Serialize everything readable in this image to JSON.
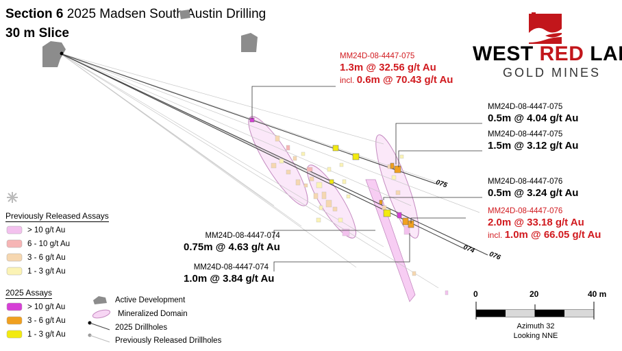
{
  "header": {
    "title_bold": "Section 6",
    "title_rest": "2025 Madsen South Austin Drilling",
    "subtitle": "30 m Slice"
  },
  "logo": {
    "word1": "WEST",
    "word2": "RED",
    "word3": "LAKE",
    "sub": "GOLD MINES",
    "accent_color": "#c2161b"
  },
  "callouts": {
    "c075_top": {
      "id": "MM24D-08-4447-075",
      "line1": "1.3m @ 32.56 g/t Au",
      "incl_prefix": "incl.",
      "incl_value": "0.6m @ 70.43 g/t Au"
    },
    "c075_a": {
      "id": "MM24D-08-4447-075",
      "value": "0.5m @ 4.04 g/t Au"
    },
    "c075_b": {
      "id": "MM24D-08-4447-075",
      "value": "1.5m @ 3.12 g/t Au"
    },
    "c076_a": {
      "id": "MM24D-08-4447-076",
      "value": "0.5m @ 3.24 g/t Au"
    },
    "c076_b": {
      "id": "MM24D-08-4447-076",
      "line1": "2.0m @ 33.18 g/t Au",
      "incl_prefix": "incl.",
      "incl_value": "1.0m @ 66.05 g/t Au"
    },
    "c074_a": {
      "id": "MM24D-08-4447-074",
      "value": "0.75m @ 4.63 g/t Au"
    },
    "c074_b": {
      "id": "MM24D-08-4447-074",
      "value": "1.0m @ 3.84 g/t Au"
    }
  },
  "hole_labels": {
    "h075": "075",
    "h074": "074",
    "h076": "076"
  },
  "legend": {
    "previous_title": "Previously Released Assays",
    "previous_items": [
      {
        "label": "> 10 g/t Au",
        "color": "#f3c1ee"
      },
      {
        "label": "6 - 10 g/t Au",
        "color": "#f6b5b5"
      },
      {
        "label": "3 - 6 g/t Au",
        "color": "#f6d7b0"
      },
      {
        "label": "1 - 3 g/t Au",
        "color": "#fbf3b5"
      }
    ],
    "assays2025_title": "2025 Assays",
    "assays2025_items": [
      {
        "label": "> 10 g/t Au",
        "color": "#d63fd6"
      },
      {
        "label": "3 - 6 g/t Au",
        "color": "#f0a020"
      },
      {
        "label": "1 - 3 g/t Au",
        "color": "#f2ea10"
      }
    ],
    "symbols": [
      {
        "label": "Active Development"
      },
      {
        "label": "Mineralized Domain"
      },
      {
        "label": "2025 Drillholes"
      },
      {
        "label": "Previously Released Drillholes"
      }
    ]
  },
  "scale": {
    "ticks": [
      "0",
      "20",
      "40 m"
    ],
    "azimuth": "Azimuth 32",
    "looking": "Looking NNE"
  }
}
